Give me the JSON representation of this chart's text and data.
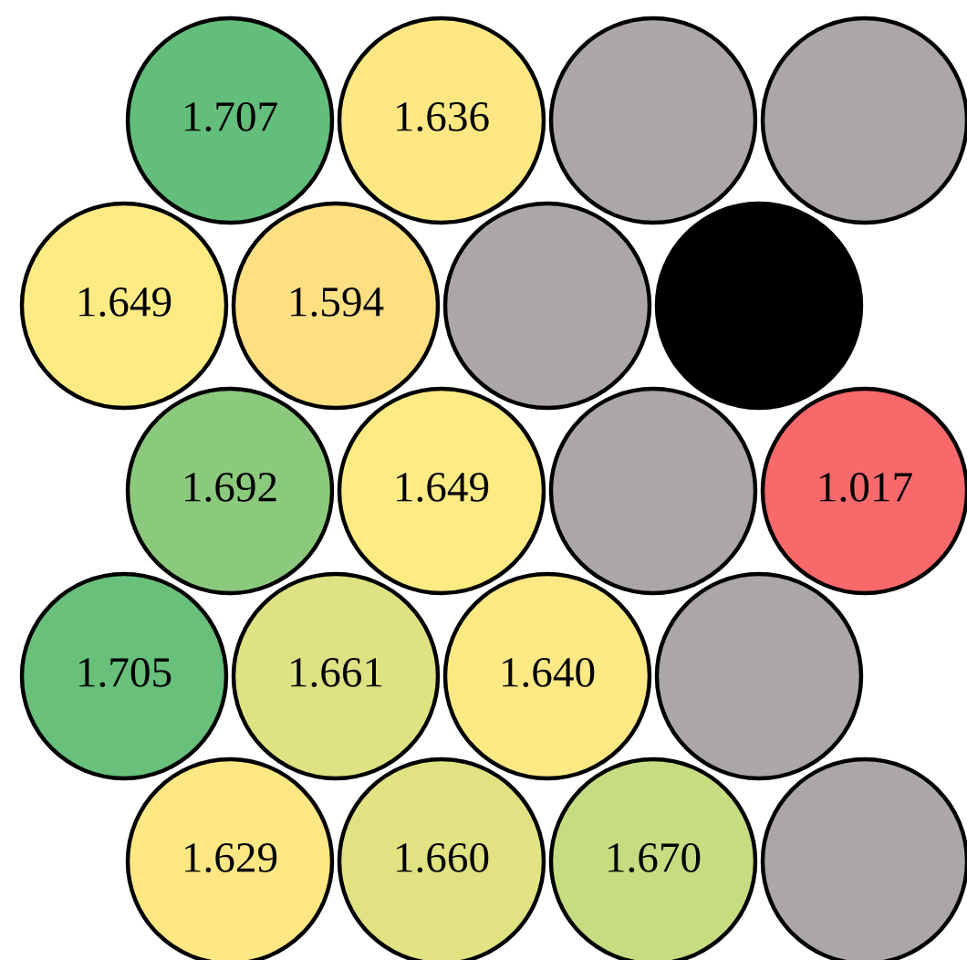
{
  "chart_data": {
    "type": "other",
    "data_labels": true,
    "values": [
      1.707,
      1.636,
      null,
      null,
      1.649,
      1.594,
      null,
      null,
      1.692,
      1.649,
      null,
      1.017,
      1.705,
      1.661,
      1.64,
      null,
      1.629,
      1.66,
      1.67,
      null
    ],
    "value_labels": [
      "1.707",
      "1.636",
      null,
      null,
      "1.649",
      "1.594",
      null,
      null,
      "1.692",
      "1.649",
      null,
      "1.017",
      "1.705",
      "1.661",
      "1.640",
      null,
      "1.629",
      "1.660",
      "1.670",
      null
    ],
    "colors": [
      null,
      null,
      "#aba7a6",
      "#aba7a6",
      null,
      null,
      "#aba7a6",
      "#000000",
      null,
      null,
      "#aba7a6",
      null,
      null,
      null,
      null,
      "#aba7a6",
      null,
      null,
      null,
      "#aba7a6"
    ]
  }
}
